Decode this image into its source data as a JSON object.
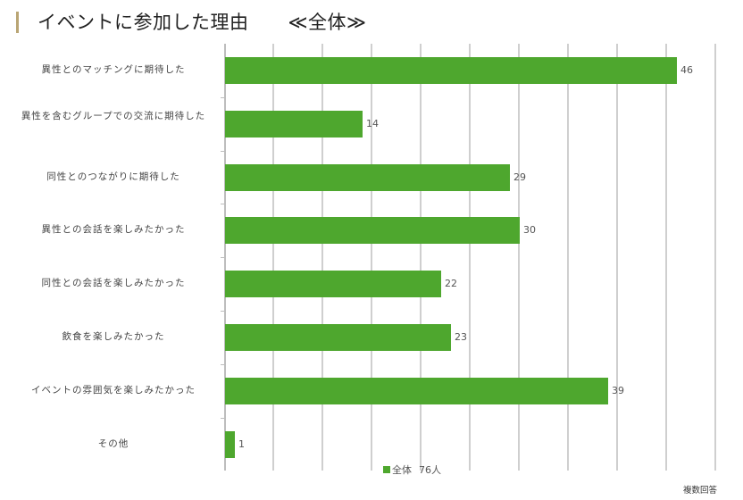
{
  "header": {
    "title": "イベントに参加した理由",
    "scope": "≪全体≫"
  },
  "legend": {
    "label": "全体",
    "count": "76人",
    "color": "#4ea72e"
  },
  "note": "複数回答",
  "chart_data": {
    "type": "bar",
    "orientation": "horizontal",
    "title": "イベントに参加した理由 ≪全体≫",
    "xlabel": "",
    "ylabel": "",
    "xlim": [
      0,
      50
    ],
    "grid": true,
    "grid_interval": 5,
    "legend_position": "bottom",
    "categories": [
      "異性とのマッチングに期待した",
      "異性を含むグループでの交流に期待した",
      "同性とのつながりに期待した",
      "異性との会話を楽しみたかった",
      "同性との会話を楽しみたかった",
      "飲食を楽しみたかった",
      "イベントの雰囲気を楽しみたかった",
      "その他"
    ],
    "series": [
      {
        "name": "全体 76人",
        "color": "#4ea72e",
        "values": [
          46,
          14,
          29,
          30,
          22,
          23,
          39,
          1
        ]
      }
    ],
    "annotations": [
      "複数回答"
    ]
  }
}
